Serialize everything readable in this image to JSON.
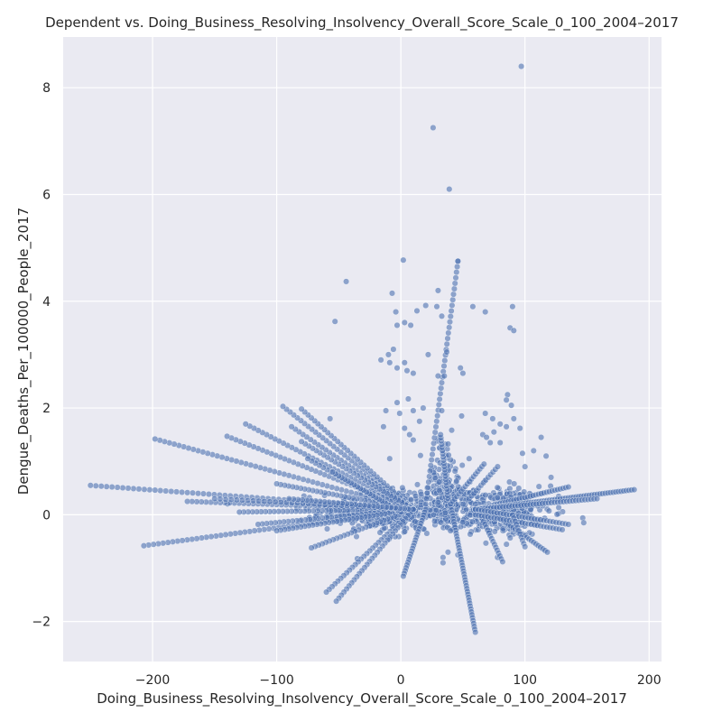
{
  "chart_data": {
    "type": "scatter",
    "title": "Dependent vs. Doing_Business_Resolving_Insolvency_Overall_Score_Scale_0_100_2004–2017",
    "xlabel": "Doing_Business_Resolving_Insolvency_Overall_Score_Scale_0_100_2004–2017",
    "ylabel": "Dengue_Deaths_Per_100000_People_2017",
    "xlim": [
      -272,
      210
    ],
    "ylim": [
      -2.75,
      8.95
    ],
    "xticks": [
      -200,
      -100,
      0,
      100,
      200
    ],
    "yticks": [
      -2,
      0,
      2,
      4,
      6,
      8
    ],
    "xtick_labels": [
      "−200",
      "−100",
      "0",
      "100",
      "200"
    ],
    "ytick_labels": [
      "−2",
      "0",
      "2",
      "4",
      "6",
      "8"
    ],
    "grid": true,
    "background": "#eaeaf2",
    "grid_color": "#ffffff",
    "marker_color": "#4c72b0",
    "marker_edge_color": "#ffffff",
    "marker_alpha": 0.6,
    "outliers": [
      {
        "x": 97,
        "y": 8.4
      },
      {
        "x": 26,
        "y": 7.25
      },
      {
        "x": 39,
        "y": 6.1
      },
      {
        "x": 2,
        "y": 4.77
      },
      {
        "x": 46,
        "y": 4.75
      },
      {
        "x": -44,
        "y": 4.37
      },
      {
        "x": 30,
        "y": 4.2
      },
      {
        "x": -7,
        "y": 4.15
      },
      {
        "x": 20,
        "y": 3.92
      },
      {
        "x": 29,
        "y": 3.9
      },
      {
        "x": 58,
        "y": 3.9
      },
      {
        "x": 90,
        "y": 3.9
      },
      {
        "x": 13,
        "y": 3.82
      },
      {
        "x": 68,
        "y": 3.8
      },
      {
        "x": -4,
        "y": 3.8
      },
      {
        "x": 33,
        "y": 3.72
      },
      {
        "x": -53,
        "y": 3.62
      },
      {
        "x": 3,
        "y": 3.6
      },
      {
        "x": 8,
        "y": 3.55
      },
      {
        "x": -3,
        "y": 3.55
      },
      {
        "x": 88,
        "y": 3.5
      },
      {
        "x": 91,
        "y": 3.45
      },
      {
        "x": -6,
        "y": 3.1
      },
      {
        "x": 22,
        "y": 3.0
      },
      {
        "x": -10,
        "y": 3.0
      },
      {
        "x": 37,
        "y": 3.05
      },
      {
        "x": -16,
        "y": 2.9
      },
      {
        "x": -9,
        "y": 2.85
      },
      {
        "x": 3,
        "y": 2.85
      },
      {
        "x": 48,
        "y": 2.75
      },
      {
        "x": 5,
        "y": 2.7
      },
      {
        "x": 10,
        "y": 2.65
      },
      {
        "x": -3,
        "y": 2.75
      },
      {
        "x": 50,
        "y": 2.65
      },
      {
        "x": 30,
        "y": 2.6
      },
      {
        "x": 35,
        "y": 2.6
      },
      {
        "x": 86,
        "y": 2.25
      },
      {
        "x": 85,
        "y": 2.15
      },
      {
        "x": 6,
        "y": 2.17
      },
      {
        "x": -3,
        "y": 2.1
      },
      {
        "x": 89,
        "y": 2.05
      },
      {
        "x": 18,
        "y": 2.0
      },
      {
        "x": 33,
        "y": 1.95
      },
      {
        "x": 10,
        "y": 1.95
      },
      {
        "x": -12,
        "y": 1.95
      },
      {
        "x": -1,
        "y": 1.9
      },
      {
        "x": 68,
        "y": 1.9
      },
      {
        "x": 49,
        "y": 1.85
      },
      {
        "x": 91,
        "y": 1.8
      },
      {
        "x": 74,
        "y": 1.8
      },
      {
        "x": -57,
        "y": 1.8
      },
      {
        "x": 15,
        "y": 1.75
      },
      {
        "x": 80,
        "y": 1.7
      },
      {
        "x": -14,
        "y": 1.65
      },
      {
        "x": 3,
        "y": 1.62
      },
      {
        "x": 85,
        "y": 1.65
      },
      {
        "x": 96,
        "y": 1.62
      },
      {
        "x": 75,
        "y": 1.55
      },
      {
        "x": 66,
        "y": 1.5
      },
      {
        "x": 7,
        "y": 1.5
      },
      {
        "x": 69,
        "y": 1.45
      },
      {
        "x": 113,
        "y": 1.45
      },
      {
        "x": 10,
        "y": 1.4
      },
      {
        "x": 72,
        "y": 1.35
      },
      {
        "x": 80,
        "y": 1.35
      },
      {
        "x": 107,
        "y": 1.2
      },
      {
        "x": 98,
        "y": 1.15
      },
      {
        "x": 117,
        "y": 1.1
      },
      {
        "x": -9,
        "y": 1.05
      },
      {
        "x": 55,
        "y": 1.05
      },
      {
        "x": 100,
        "y": 0.9
      },
      {
        "x": 121,
        "y": 0.7
      },
      {
        "x": 38,
        "y": -0.7
      },
      {
        "x": 34,
        "y": -0.8
      },
      {
        "x": 34,
        "y": -0.9
      },
      {
        "x": 40,
        "y": -0.3
      }
    ],
    "fans": [
      {
        "x0": 10,
        "y0": 0.1,
        "x1": -250,
        "y1": 0.55,
        "n": 60
      },
      {
        "x0": 10,
        "y0": 0.1,
        "x1": -207,
        "y1": -0.58,
        "n": 56
      },
      {
        "x0": 10,
        "y0": 0.1,
        "x1": -198,
        "y1": 1.42,
        "n": 54
      },
      {
        "x0": 10,
        "y0": 0.1,
        "x1": -172,
        "y1": 0.25,
        "n": 48
      },
      {
        "x0": 10,
        "y0": 0.1,
        "x1": -125,
        "y1": 1.7,
        "n": 40
      },
      {
        "x0": 10,
        "y0": 0.1,
        "x1": -140,
        "y1": 1.47,
        "n": 42
      },
      {
        "x0": 10,
        "y0": 0.1,
        "x1": -95,
        "y1": 2.03,
        "n": 36
      },
      {
        "x0": 10,
        "y0": 0.1,
        "x1": -80,
        "y1": 1.98,
        "n": 34
      },
      {
        "x0": 10,
        "y0": 0.1,
        "x1": -88,
        "y1": 1.65,
        "n": 32
      },
      {
        "x0": 10,
        "y0": 0.1,
        "x1": -80,
        "y1": 1.37,
        "n": 30
      },
      {
        "x0": 10,
        "y0": 0.1,
        "x1": -100,
        "y1": 0.58,
        "n": 34
      },
      {
        "x0": 10,
        "y0": 0.1,
        "x1": -130,
        "y1": 0.05,
        "n": 40
      },
      {
        "x0": 10,
        "y0": 0.1,
        "x1": -115,
        "y1": -0.18,
        "n": 36
      },
      {
        "x0": 10,
        "y0": 0.1,
        "x1": -100,
        "y1": -0.3,
        "n": 34
      },
      {
        "x0": 10,
        "y0": 0.1,
        "x1": -72,
        "y1": -0.62,
        "n": 28
      },
      {
        "x0": 10,
        "y0": 0.1,
        "x1": -60,
        "y1": -1.45,
        "n": 30
      },
      {
        "x0": 10,
        "y0": 0.1,
        "x1": -52,
        "y1": -1.62,
        "n": 30
      },
      {
        "x0": 0,
        "y0": 0.05,
        "x1": -75,
        "y1": 1.05,
        "n": 24
      },
      {
        "x0": 0,
        "y0": 0.05,
        "x1": -55,
        "y1": 0.8,
        "n": 22
      },
      {
        "x0": 10,
        "y0": 0.1,
        "x1": -150,
        "y1": 0.3,
        "n": 36
      },
      {
        "x0": 10,
        "y0": 0.1,
        "x1": -90,
        "y1": 0.3,
        "n": 28
      },
      {
        "x0": 20,
        "y0": 0.1,
        "x1": 2,
        "y1": -1.15,
        "n": 24
      },
      {
        "x0": 20,
        "y0": 0.2,
        "x1": 46,
        "y1": 4.75,
        "n": 44
      },
      {
        "x0": 38,
        "y0": 0.3,
        "x1": 32,
        "y1": 1.5,
        "n": 20
      },
      {
        "x0": 40,
        "y0": 0.2,
        "x1": 60,
        "y1": -2.2,
        "n": 44
      },
      {
        "x0": 40,
        "y0": 0.2,
        "x1": 67,
        "y1": 0.95,
        "n": 16
      },
      {
        "x0": 60,
        "y0": 0.2,
        "x1": 82,
        "y1": -0.88,
        "n": 20
      },
      {
        "x0": 70,
        "y0": 0.1,
        "x1": 95,
        "y1": -0.35,
        "n": 16
      },
      {
        "x0": 70,
        "y0": 0.1,
        "x1": 118,
        "y1": -0.7,
        "n": 26
      },
      {
        "x0": 60,
        "y0": 0.1,
        "x1": 135,
        "y1": 0.52,
        "n": 34
      },
      {
        "x0": 60,
        "y0": 0.1,
        "x1": 188,
        "y1": 0.47,
        "n": 60
      },
      {
        "x0": 60,
        "y0": 0.1,
        "x1": 158,
        "y1": 0.3,
        "n": 40
      },
      {
        "x0": 60,
        "y0": 0.1,
        "x1": 135,
        "y1": -0.18,
        "n": 30
      },
      {
        "x0": 60,
        "y0": 0.0,
        "x1": 130,
        "y1": -0.28,
        "n": 28
      },
      {
        "x0": 55,
        "y0": 0.3,
        "x1": 78,
        "y1": 0.9,
        "n": 12
      },
      {
        "x0": 90,
        "y0": 0.0,
        "x1": 100,
        "y1": -0.6,
        "n": 10
      }
    ],
    "clusters": [
      {
        "cx": 30,
        "cy": 0.1,
        "sx": 42,
        "sy": 0.22,
        "n": 500
      },
      {
        "cx": 85,
        "cy": 0.05,
        "sx": 14,
        "sy": 0.22,
        "n": 180
      },
      {
        "cx": 35,
        "cy": 0.6,
        "sx": 8,
        "sy": 0.45,
        "n": 90
      },
      {
        "cx": -20,
        "cy": 0.0,
        "sx": 25,
        "sy": 0.12,
        "n": 150
      }
    ]
  }
}
